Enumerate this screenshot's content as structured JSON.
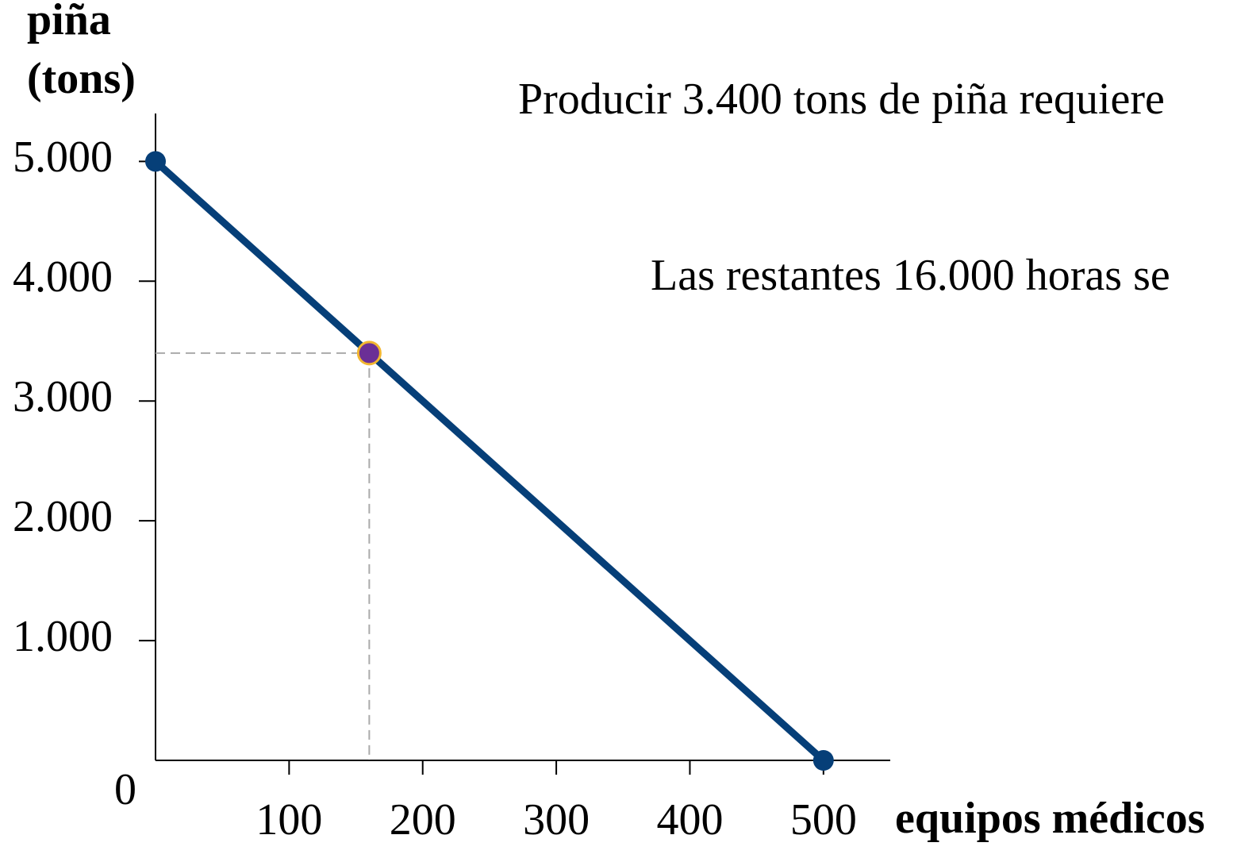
{
  "chart_data": {
    "type": "line",
    "ylabel_lines": [
      "piña",
      "(tons)"
    ],
    "xlabel": "equipos médicos",
    "origin_label": "0",
    "x": [
      0,
      500
    ],
    "values": [
      5000,
      0
    ],
    "color": "#063f78",
    "xlim": [
      0,
      550
    ],
    "ylim": [
      0,
      5400
    ],
    "xticks": [
      100,
      200,
      300,
      400,
      500
    ],
    "yticks": [
      {
        "value": 1000,
        "label": "1.000"
      },
      {
        "value": 2000,
        "label": "2.000"
      },
      {
        "value": 3000,
        "label": "3.000"
      },
      {
        "value": 4000,
        "label": "4.000"
      },
      {
        "value": 5000,
        "label": "5.000"
      }
    ],
    "highlight": {
      "x": 160,
      "y": 3400,
      "color": "#6b2f96",
      "stroke": "#f2b630"
    },
    "annotations": [
      "Producir 3.400 tons de piña requiere",
      "Las restantes 16.000 horas se"
    ]
  }
}
